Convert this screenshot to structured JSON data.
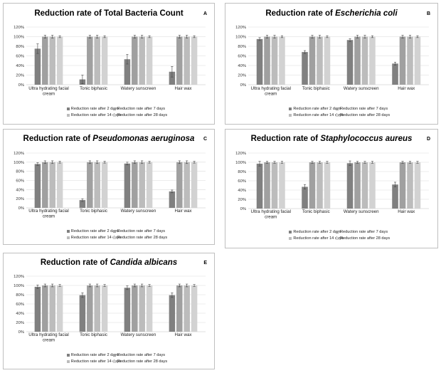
{
  "colors": [
    "#808080",
    "#a0a0a0",
    "#bcbcbc",
    "#d2d2d2"
  ],
  "charts": [
    {
      "letter": "A",
      "title_plain": "Reduction rate of Total Bacteria Count",
      "title_italic": "",
      "chart_data": {
        "type": "bar",
        "title": "Reduction rate of Total Bacteria Count",
        "categories": [
          "Ultra hydrating facial cream",
          "Tonic biphasic",
          "Watery sunscreen",
          "Hair wax"
        ],
        "y_ticks": [
          "0%",
          "20%",
          "40%",
          "60%",
          "80%",
          "100%",
          "120%"
        ],
        "ylim": [
          0,
          120
        ],
        "series": [
          {
            "name": "Reduction rate after 2 days",
            "values": [
              75,
              11,
              53,
              27
            ],
            "errors": [
              10,
              9,
              10,
              11
            ]
          },
          {
            "name": "Reduction rate after 7 days",
            "values": [
              100,
              100,
              100,
              100
            ],
            "errors": [
              3,
              3,
              3,
              3
            ]
          },
          {
            "name": "Reduction rate after 14 days",
            "values": [
              100,
              100,
              100,
              100
            ],
            "errors": [
              3,
              3,
              3,
              3
            ]
          },
          {
            "name": "Reduction rate after 28 days",
            "values": [
              100,
              100,
              100,
              100
            ],
            "errors": [
              2,
              2,
              2,
              2
            ]
          }
        ]
      }
    },
    {
      "letter": "B",
      "title_plain": "Reduction rate of ",
      "title_italic": "Escherichia coli",
      "chart_data": {
        "type": "bar",
        "title": "Reduction rate of Escherichia coli",
        "categories": [
          "Ultra hydrating facial cream",
          "Tonic biphasic",
          "Watery sunscreen",
          "Hair wax"
        ],
        "y_ticks": [
          "0%",
          "20%",
          "40%",
          "60%",
          "80%",
          "100%",
          "120%"
        ],
        "ylim": [
          0,
          120
        ],
        "series": [
          {
            "name": "Reduction rate after 2 days",
            "values": [
              95,
              68,
              93,
              44
            ],
            "errors": [
              3,
              3,
              3,
              3
            ]
          },
          {
            "name": "Reduction rate after 7 days",
            "values": [
              100,
              100,
              100,
              100
            ],
            "errors": [
              3,
              3,
              3,
              3
            ]
          },
          {
            "name": "Reduction rate after 14 days",
            "values": [
              100,
              100,
              100,
              100
            ],
            "errors": [
              3,
              3,
              3,
              3
            ]
          },
          {
            "name": "Reduction rate after 28 days",
            "values": [
              100,
              100,
              100,
              100
            ],
            "errors": [
              2,
              2,
              2,
              2
            ]
          }
        ]
      }
    },
    {
      "letter": "C",
      "title_plain": "Reduction rate of ",
      "title_italic": "Pseudomonas  aeruginosa",
      "chart_data": {
        "type": "bar",
        "title": "Reduction rate of Pseudomonas aeruginosa",
        "categories": [
          "Ultra hydrating facial cream",
          "Tonic biphasic",
          "Watery sunscreen",
          "Hair wax"
        ],
        "y_ticks": [
          "0%",
          "20%",
          "40%",
          "60%",
          "80%",
          "100%",
          "120%"
        ],
        "ylim": [
          0,
          120
        ],
        "series": [
          {
            "name": "Reduction rate after 2 days",
            "values": [
              96,
              17,
              97,
              36
            ],
            "errors": [
              3,
              3,
              3,
              3
            ]
          },
          {
            "name": "Reduction rate after 7 days",
            "values": [
              100,
              100,
              100,
              100
            ],
            "errors": [
              3,
              3,
              3,
              3
            ]
          },
          {
            "name": "Reduction rate after 14 days",
            "values": [
              100,
              100,
              100,
              100
            ],
            "errors": [
              3,
              3,
              3,
              3
            ]
          },
          {
            "name": "Reduction rate after 28 days",
            "values": [
              100,
              100,
              100,
              100
            ],
            "errors": [
              2,
              2,
              2,
              2
            ]
          }
        ]
      }
    },
    {
      "letter": "D",
      "title_plain": "Reduction rate of ",
      "title_italic": "Staphylococcus aureus",
      "chart_data": {
        "type": "bar",
        "title": "Reduction rate of Staphylococcus aureus",
        "categories": [
          "Ultra hydrating facial cream",
          "Tonic biphasic",
          "Watery sunscreen",
          "Hair wax"
        ],
        "y_ticks": [
          "0%",
          "20%",
          "40%",
          "60%",
          "80%",
          "100%",
          "120%"
        ],
        "ylim": [
          0,
          120
        ],
        "series": [
          {
            "name": "Reduction rate after 2 days",
            "values": [
              97,
              47,
              98,
              52
            ],
            "errors": [
              5,
              5,
              5,
              5
            ]
          },
          {
            "name": "Reduction rate after 7 days",
            "values": [
              100,
              100,
              100,
              100
            ],
            "errors": [
              2,
              2,
              2,
              2
            ]
          },
          {
            "name": "Reduction rate after 14 days",
            "values": [
              100,
              100,
              100,
              100
            ],
            "errors": [
              2,
              2,
              2,
              2
            ]
          },
          {
            "name": "Reduction rate after 28 days",
            "values": [
              100,
              100,
              100,
              100
            ],
            "errors": [
              2,
              2,
              2,
              2
            ]
          }
        ]
      }
    },
    {
      "letter": "E",
      "title_plain": "Reduction rate of ",
      "title_italic": "Candida albicans",
      "chart_data": {
        "type": "bar",
        "title": "Reduction rate of Candida albicans",
        "categories": [
          "Ultra hydrating facial cream",
          "Tonic biphasic",
          "Watery sunscreen",
          "Hair wax"
        ],
        "y_ticks": [
          "0%",
          "20%",
          "40%",
          "60%",
          "80%",
          "100%",
          "120%"
        ],
        "ylim": [
          0,
          120
        ],
        "series": [
          {
            "name": "Reduction rate after 2 days",
            "values": [
              97,
              79,
              95,
              79
            ],
            "errors": [
              4,
              5,
              4,
              5
            ]
          },
          {
            "name": "Reduction rate after 7 days",
            "values": [
              100,
              100,
              100,
              100
            ],
            "errors": [
              3,
              3,
              3,
              3
            ]
          },
          {
            "name": "Reduction rate after 14 days",
            "values": [
              100,
              100,
              100,
              100
            ],
            "errors": [
              3,
              3,
              3,
              3
            ]
          },
          {
            "name": "Reduction rate after 28 days",
            "values": [
              100,
              100,
              100,
              100
            ],
            "errors": [
              2,
              2,
              2,
              2
            ]
          }
        ]
      }
    }
  ]
}
